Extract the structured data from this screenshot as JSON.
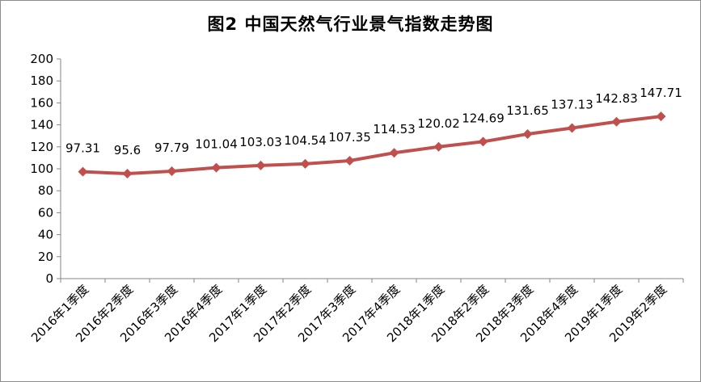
{
  "chart_data": {
    "type": "line",
    "title": "图2 中国天然气行业景气指数走势图",
    "categories": [
      "2016年1季度",
      "2016年2季度",
      "2016年3季度",
      "2016年4季度",
      "2017年1季度",
      "2017年2季度",
      "2017年3季度",
      "2017年4季度",
      "2018年1季度",
      "2018年2季度",
      "2018年3季度",
      "2018年4季度",
      "2019年1季度",
      "2019年2季度"
    ],
    "values": [
      97.31,
      95.6,
      97.79,
      101.04,
      103.03,
      104.54,
      107.35,
      114.53,
      120.02,
      124.69,
      131.65,
      137.13,
      142.83,
      147.71
    ],
    "labels": [
      "97.31",
      "95.6",
      "97.79",
      "101.04",
      "103.03",
      "104.54",
      "107.35",
      "114.53",
      "120.02",
      "124.69",
      "131.65",
      "137.13",
      "142.83",
      "147.71"
    ],
    "yticks": [
      "0",
      "20",
      "40",
      "60",
      "80",
      "100",
      "120",
      "140",
      "160",
      "180",
      "200"
    ],
    "ylim": [
      0,
      200
    ],
    "xlabel": "",
    "ylabel": "",
    "grid": false,
    "legend": "none",
    "line_color": "#c0504d",
    "marker": "diamond"
  }
}
